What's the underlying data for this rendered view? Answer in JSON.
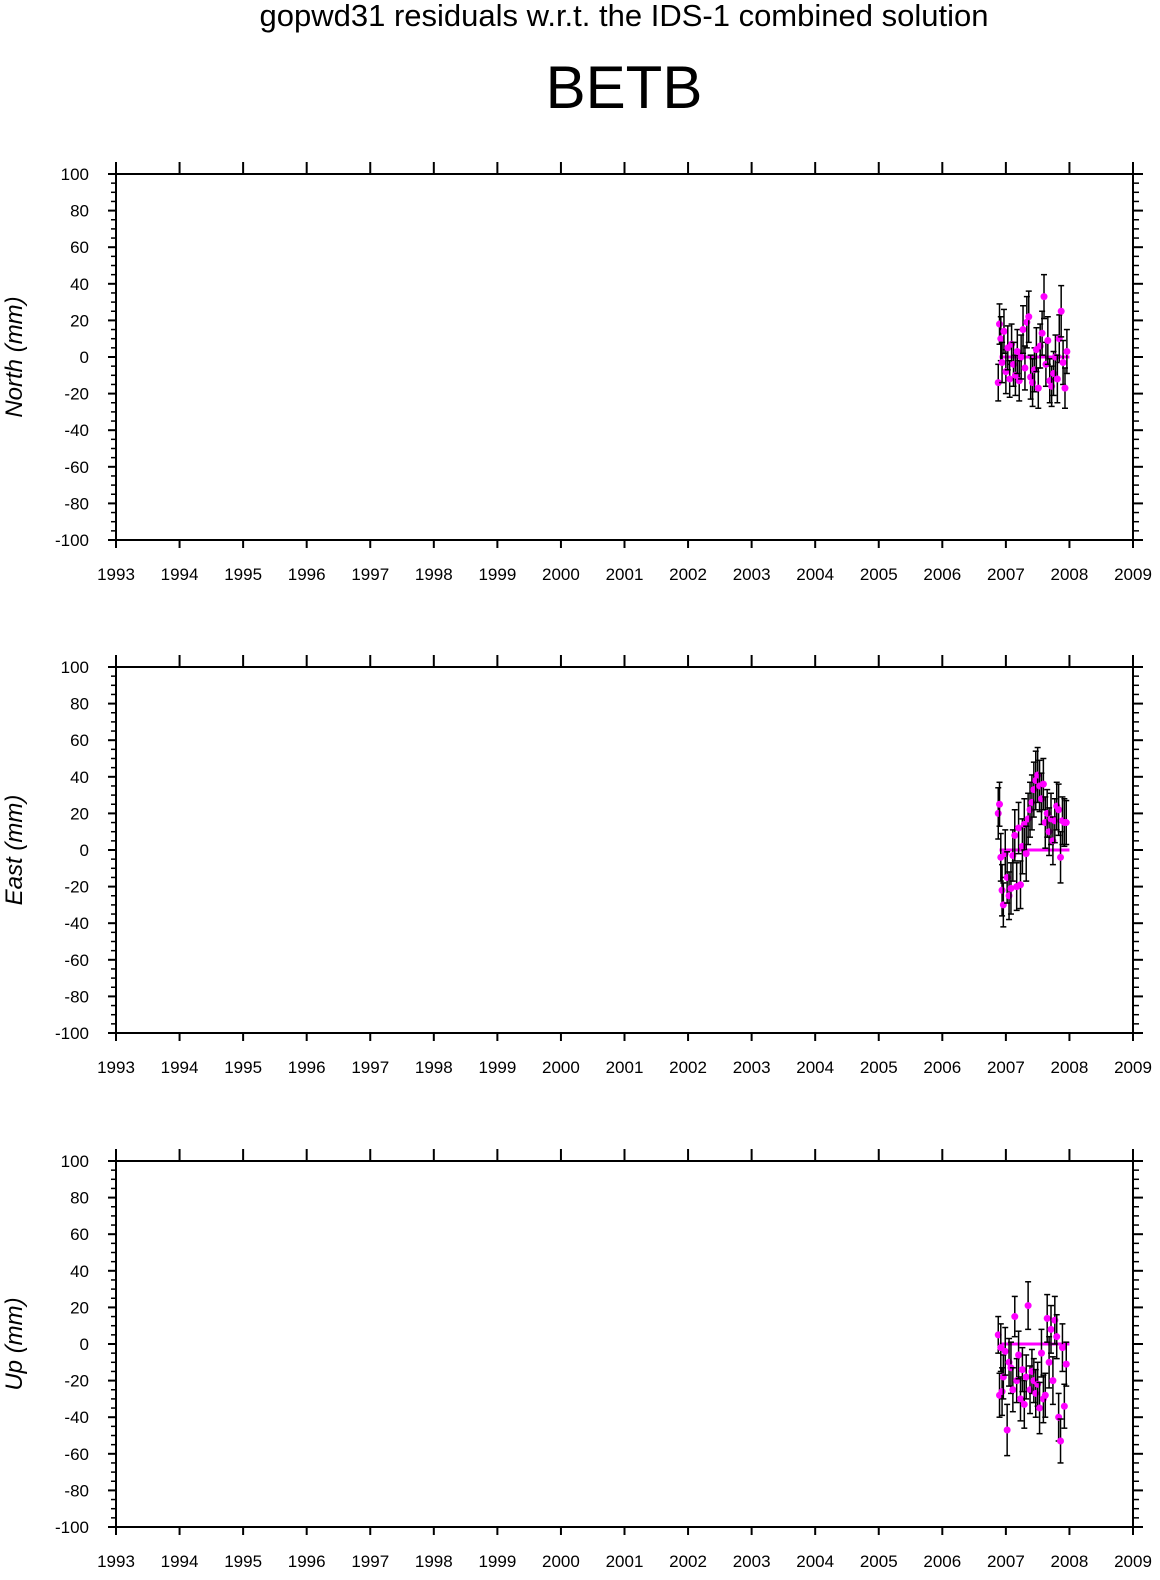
{
  "header": {
    "supertitle": "gopwd31 residuals w.r.t. the IDS-1 combined solution",
    "title": "BETB"
  },
  "colors": {
    "point": "#ff00ff",
    "errorbar": "#000000",
    "axis": "#000000"
  },
  "chart_data": [
    {
      "type": "scatter",
      "ylabel": "North (mm)",
      "xlim": [
        1993,
        2009
      ],
      "ylim": [
        -100,
        100
      ],
      "xticks": [
        "1993",
        "1994",
        "1995",
        "1996",
        "1997",
        "1998",
        "1999",
        "2000",
        "2001",
        "2002",
        "2003",
        "2004",
        "2005",
        "2006",
        "2007",
        "2008",
        "2009"
      ],
      "yticks": [
        "100",
        "80",
        "60",
        "40",
        "20",
        "0",
        "-20",
        "-40",
        "-60",
        "-80",
        "-100"
      ],
      "zero_line": [
        2006.9,
        2008.0
      ],
      "points": [
        {
          "x": 2006.88,
          "y": -14,
          "e": 10
        },
        {
          "x": 2006.9,
          "y": 18,
          "e": 11
        },
        {
          "x": 2006.92,
          "y": 10,
          "e": 12
        },
        {
          "x": 2006.94,
          "y": -3,
          "e": 11
        },
        {
          "x": 2006.97,
          "y": 14,
          "e": 12
        },
        {
          "x": 2007.0,
          "y": -8,
          "e": 12
        },
        {
          "x": 2007.03,
          "y": 5,
          "e": 12
        },
        {
          "x": 2007.06,
          "y": -12,
          "e": 10
        },
        {
          "x": 2007.09,
          "y": 7,
          "e": 11
        },
        {
          "x": 2007.12,
          "y": -4,
          "e": 12
        },
        {
          "x": 2007.15,
          "y": -10,
          "e": 11
        },
        {
          "x": 2007.18,
          "y": 3,
          "e": 12
        },
        {
          "x": 2007.21,
          "y": -13,
          "e": 11
        },
        {
          "x": 2007.24,
          "y": 0,
          "e": 12
        },
        {
          "x": 2007.27,
          "y": 15,
          "e": 13
        },
        {
          "x": 2007.3,
          "y": -6,
          "e": 12
        },
        {
          "x": 2007.33,
          "y": 19,
          "e": 14
        },
        {
          "x": 2007.36,
          "y": 22,
          "e": 14
        },
        {
          "x": 2007.39,
          "y": -11,
          "e": 12
        },
        {
          "x": 2007.42,
          "y": -14,
          "e": 13
        },
        {
          "x": 2007.45,
          "y": -7,
          "e": 12
        },
        {
          "x": 2007.48,
          "y": 4,
          "e": 12
        },
        {
          "x": 2007.51,
          "y": -17,
          "e": 11
        },
        {
          "x": 2007.54,
          "y": 6,
          "e": 12
        },
        {
          "x": 2007.57,
          "y": 13,
          "e": 12
        },
        {
          "x": 2007.6,
          "y": 33,
          "e": 12
        },
        {
          "x": 2007.63,
          "y": -4,
          "e": 12
        },
        {
          "x": 2007.66,
          "y": 9,
          "e": 13
        },
        {
          "x": 2007.69,
          "y": -13,
          "e": 12
        },
        {
          "x": 2007.72,
          "y": -16,
          "e": 11
        },
        {
          "x": 2007.75,
          "y": -9,
          "e": 12
        },
        {
          "x": 2007.78,
          "y": 0,
          "e": 12
        },
        {
          "x": 2007.81,
          "y": -12,
          "e": 13
        },
        {
          "x": 2007.84,
          "y": 10,
          "e": 13
        },
        {
          "x": 2007.87,
          "y": 25,
          "e": 14
        },
        {
          "x": 2007.9,
          "y": -3,
          "e": 12
        },
        {
          "x": 2007.93,
          "y": -17,
          "e": 11
        },
        {
          "x": 2007.96,
          "y": 3,
          "e": 12
        }
      ]
    },
    {
      "type": "scatter",
      "ylabel": "East (mm)",
      "xlim": [
        1993,
        2009
      ],
      "ylim": [
        -100,
        100
      ],
      "xticks": [
        "1993",
        "1994",
        "1995",
        "1996",
        "1997",
        "1998",
        "1999",
        "2000",
        "2001",
        "2002",
        "2003",
        "2004",
        "2005",
        "2006",
        "2007",
        "2008",
        "2009"
      ],
      "yticks": [
        "100",
        "80",
        "60",
        "40",
        "20",
        "0",
        "-20",
        "-40",
        "-60",
        "-80",
        "-100"
      ],
      "zero_line": [
        2006.9,
        2008.0
      ],
      "points": [
        {
          "x": 2006.88,
          "y": 20,
          "e": 14
        },
        {
          "x": 2006.9,
          "y": 25,
          "e": 12
        },
        {
          "x": 2006.92,
          "y": -4,
          "e": 13
        },
        {
          "x": 2006.94,
          "y": -22,
          "e": 14
        },
        {
          "x": 2006.96,
          "y": -30,
          "e": 12
        },
        {
          "x": 2006.99,
          "y": -2,
          "e": 13
        },
        {
          "x": 2007.02,
          "y": -15,
          "e": 14
        },
        {
          "x": 2007.05,
          "y": -25,
          "e": 13
        },
        {
          "x": 2007.08,
          "y": -21,
          "e": 14
        },
        {
          "x": 2007.11,
          "y": -3,
          "e": 14
        },
        {
          "x": 2007.14,
          "y": 8,
          "e": 14
        },
        {
          "x": 2007.17,
          "y": -20,
          "e": 13
        },
        {
          "x": 2007.2,
          "y": 12,
          "e": 14
        },
        {
          "x": 2007.23,
          "y": -19,
          "e": 13
        },
        {
          "x": 2007.26,
          "y": 2,
          "e": 15
        },
        {
          "x": 2007.29,
          "y": 14,
          "e": 14
        },
        {
          "x": 2007.32,
          "y": -2,
          "e": 15
        },
        {
          "x": 2007.35,
          "y": 17,
          "e": 14
        },
        {
          "x": 2007.38,
          "y": 22,
          "e": 15
        },
        {
          "x": 2007.41,
          "y": 26,
          "e": 15
        },
        {
          "x": 2007.44,
          "y": 33,
          "e": 15
        },
        {
          "x": 2007.47,
          "y": 38,
          "e": 16
        },
        {
          "x": 2007.5,
          "y": 41,
          "e": 15
        },
        {
          "x": 2007.53,
          "y": 35,
          "e": 14
        },
        {
          "x": 2007.56,
          "y": 28,
          "e": 14
        },
        {
          "x": 2007.59,
          "y": 36,
          "e": 14
        },
        {
          "x": 2007.62,
          "y": 15,
          "e": 14
        },
        {
          "x": 2007.65,
          "y": 20,
          "e": 13
        },
        {
          "x": 2007.68,
          "y": 10,
          "e": 13
        },
        {
          "x": 2007.71,
          "y": 17,
          "e": 14
        },
        {
          "x": 2007.74,
          "y": 5,
          "e": 13
        },
        {
          "x": 2007.77,
          "y": 16,
          "e": 12
        },
        {
          "x": 2007.8,
          "y": 24,
          "e": 13
        },
        {
          "x": 2007.83,
          "y": 22,
          "e": 14
        },
        {
          "x": 2007.86,
          "y": -4,
          "e": 14
        },
        {
          "x": 2007.89,
          "y": 16,
          "e": 13
        },
        {
          "x": 2007.92,
          "y": 15,
          "e": 13
        },
        {
          "x": 2007.95,
          "y": 15,
          "e": 12
        }
      ]
    },
    {
      "type": "scatter",
      "ylabel": "Up (mm)",
      "xlim": [
        1993,
        2009
      ],
      "ylim": [
        -100,
        100
      ],
      "xticks": [
        "1993",
        "1994",
        "1995",
        "1996",
        "1997",
        "1998",
        "1999",
        "2000",
        "2001",
        "2002",
        "2003",
        "2004",
        "2005",
        "2006",
        "2007",
        "2008",
        "2009"
      ],
      "yticks": [
        "100",
        "80",
        "60",
        "40",
        "20",
        "0",
        "-20",
        "-40",
        "-60",
        "-80",
        "-100"
      ],
      "zero_line": [
        2006.9,
        2008.0
      ],
      "points": [
        {
          "x": 2006.88,
          "y": 5,
          "e": 10
        },
        {
          "x": 2006.9,
          "y": -28,
          "e": 12
        },
        {
          "x": 2006.92,
          "y": -2,
          "e": 13
        },
        {
          "x": 2006.94,
          "y": -26,
          "e": 13
        },
        {
          "x": 2006.96,
          "y": -18,
          "e": 12
        },
        {
          "x": 2006.99,
          "y": -4,
          "e": 13
        },
        {
          "x": 2007.02,
          "y": -47,
          "e": 14
        },
        {
          "x": 2007.05,
          "y": -10,
          "e": 13
        },
        {
          "x": 2007.08,
          "y": -13,
          "e": 14
        },
        {
          "x": 2007.11,
          "y": -25,
          "e": 12
        },
        {
          "x": 2007.14,
          "y": 15,
          "e": 11
        },
        {
          "x": 2007.17,
          "y": -20,
          "e": 12
        },
        {
          "x": 2007.2,
          "y": -6,
          "e": 13
        },
        {
          "x": 2007.23,
          "y": -30,
          "e": 12
        },
        {
          "x": 2007.26,
          "y": -14,
          "e": 12
        },
        {
          "x": 2007.29,
          "y": -33,
          "e": 13
        },
        {
          "x": 2007.32,
          "y": -18,
          "e": 12
        },
        {
          "x": 2007.35,
          "y": 21,
          "e": 13
        },
        {
          "x": 2007.38,
          "y": -25,
          "e": 13
        },
        {
          "x": 2007.41,
          "y": -15,
          "e": 12
        },
        {
          "x": 2007.44,
          "y": -20,
          "e": 12
        },
        {
          "x": 2007.47,
          "y": -27,
          "e": 13
        },
        {
          "x": 2007.5,
          "y": -22,
          "e": 12
        },
        {
          "x": 2007.53,
          "y": -35,
          "e": 14
        },
        {
          "x": 2007.56,
          "y": -5,
          "e": 13
        },
        {
          "x": 2007.59,
          "y": -30,
          "e": 13
        },
        {
          "x": 2007.62,
          "y": -28,
          "e": 12
        },
        {
          "x": 2007.65,
          "y": 14,
          "e": 13
        },
        {
          "x": 2007.68,
          "y": -10,
          "e": 14
        },
        {
          "x": 2007.71,
          "y": 8,
          "e": 13
        },
        {
          "x": 2007.74,
          "y": -20,
          "e": 13
        },
        {
          "x": 2007.77,
          "y": 13,
          "e": 13
        },
        {
          "x": 2007.8,
          "y": 4,
          "e": 12
        },
        {
          "x": 2007.83,
          "y": -40,
          "e": 13
        },
        {
          "x": 2007.86,
          "y": -53,
          "e": 12
        },
        {
          "x": 2007.89,
          "y": -2,
          "e": 13
        },
        {
          "x": 2007.92,
          "y": -34,
          "e": 12
        },
        {
          "x": 2007.95,
          "y": -11,
          "e": 12
        }
      ]
    }
  ]
}
